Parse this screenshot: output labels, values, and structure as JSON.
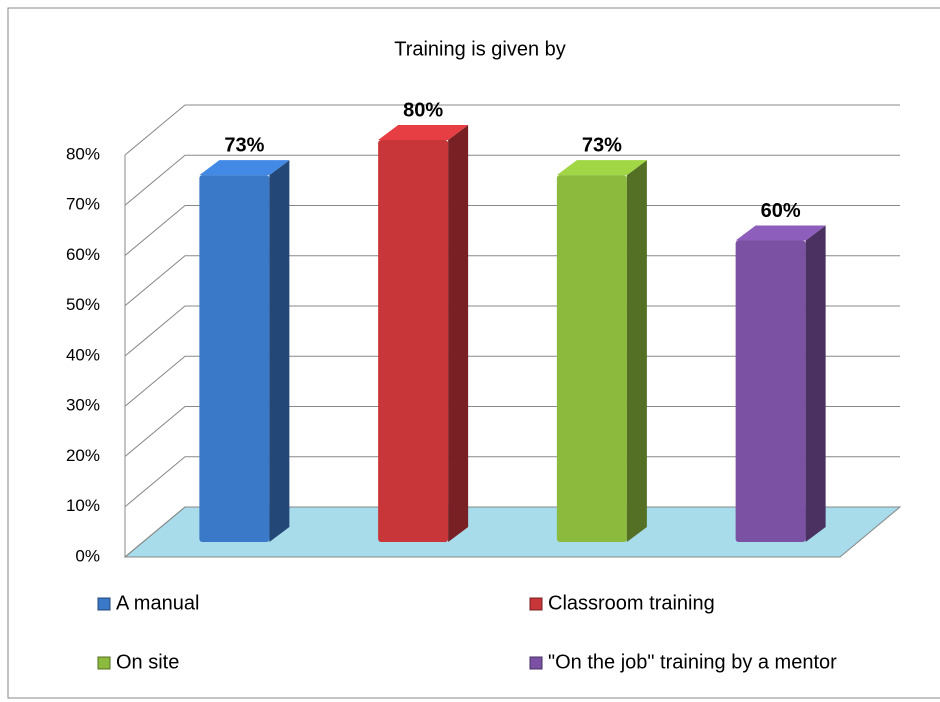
{
  "chart_data": {
    "type": "bar3d",
    "title": "Training is given by",
    "categories": [
      "A manual",
      "Classroom training",
      "On site",
      "\"On the job\" training by a mentor"
    ],
    "values": [
      73,
      80,
      73,
      60
    ],
    "value_labels": [
      "73%",
      "80%",
      "73%",
      "60%"
    ],
    "colors": [
      "#3a78c8",
      "#c8363a",
      "#8cba3c",
      "#7b52a3"
    ],
    "ylim": [
      0,
      80
    ],
    "yticks": [
      {
        "value": 0,
        "label": "0%"
      },
      {
        "value": 10,
        "label": "10%"
      },
      {
        "value": 20,
        "label": "20%"
      },
      {
        "value": 30,
        "label": "30%"
      },
      {
        "value": 40,
        "label": "40%"
      },
      {
        "value": 50,
        "label": "50%"
      },
      {
        "value": 60,
        "label": "60%"
      },
      {
        "value": 70,
        "label": "70%"
      },
      {
        "value": 80,
        "label": "80%"
      }
    ],
    "grid": true
  }
}
